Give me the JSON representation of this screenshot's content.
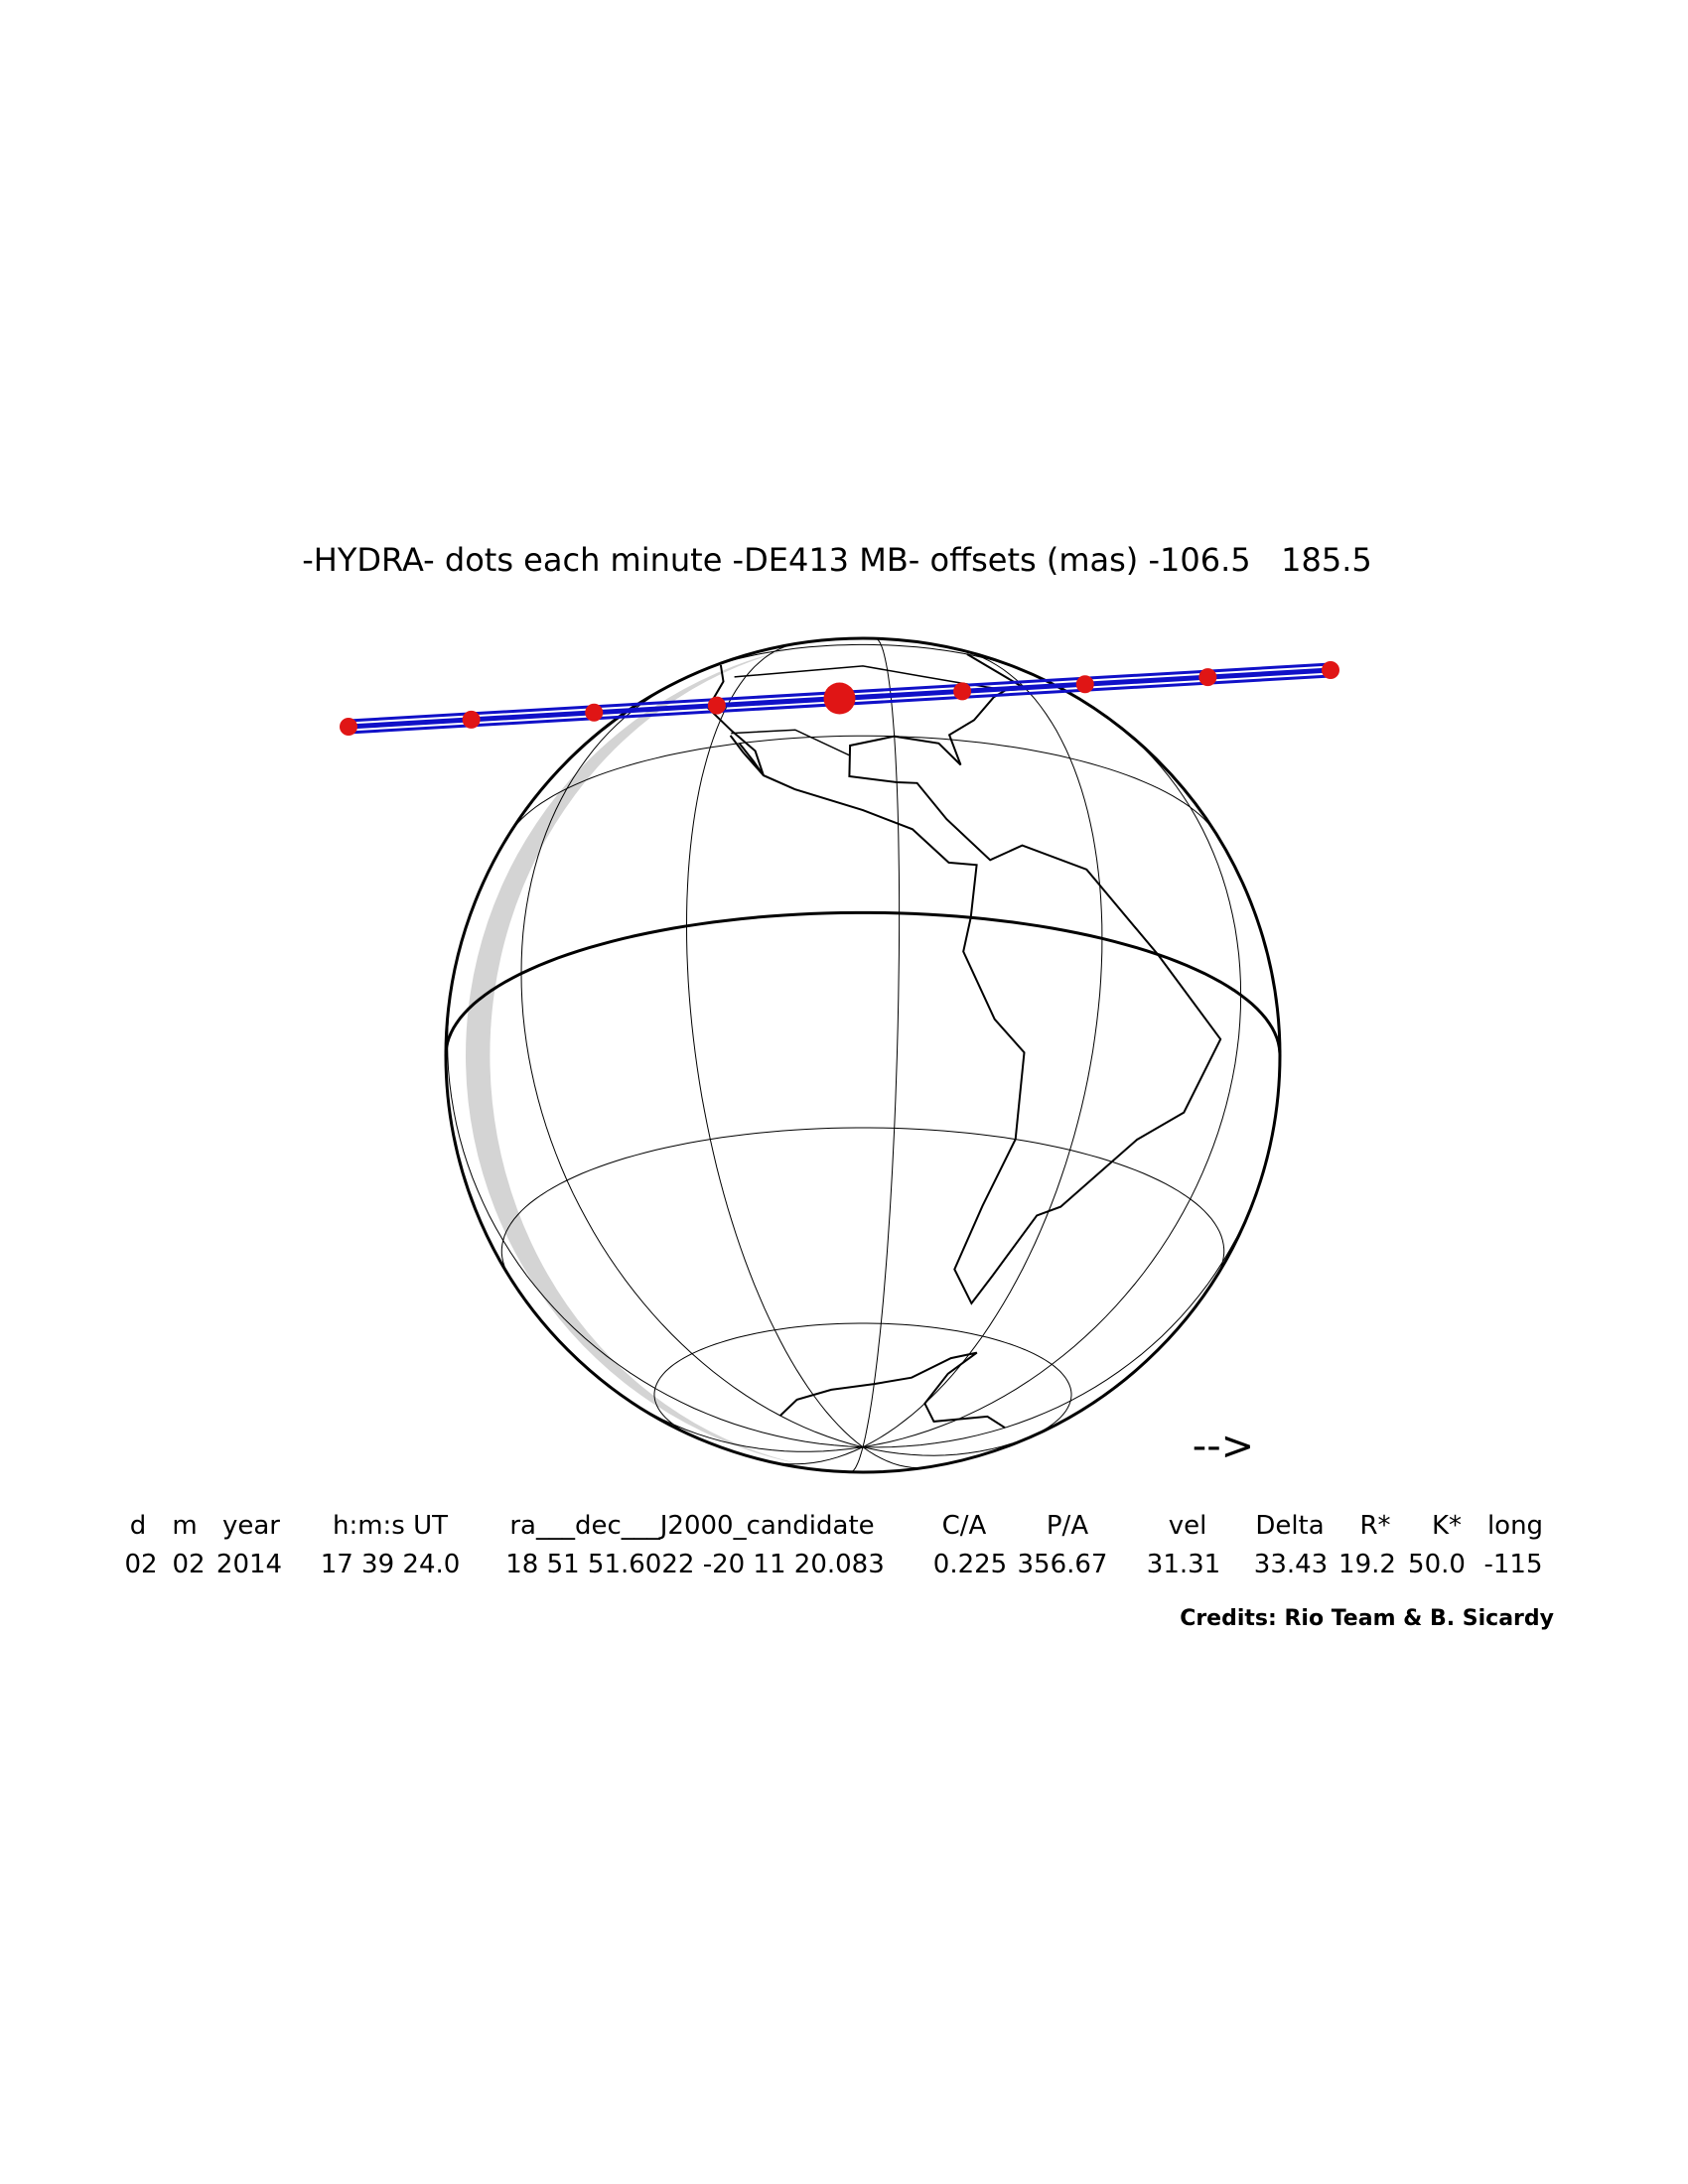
{
  "title": "-HYDRA- dots each minute -DE413 MB- offsets (mas) -106.5   185.5",
  "direction_arrow": "-->",
  "table": {
    "headers": [
      "d",
      "m",
      "year",
      "h:m:s UT",
      "ra___dec___J2000_candidate",
      "C/A",
      "P/A",
      "vel",
      "Delta",
      "R*",
      "K*",
      "long"
    ],
    "values": [
      "02",
      "02",
      "2014",
      "17 39 24.0",
      "18 51 51.6022 -20 11 20.083",
      "0.225",
      "356.67",
      "31.31",
      "33.43",
      "19.2",
      "50.0",
      "-115"
    ]
  },
  "credits": "Credits: Rio Team & B. Sicardy"
}
